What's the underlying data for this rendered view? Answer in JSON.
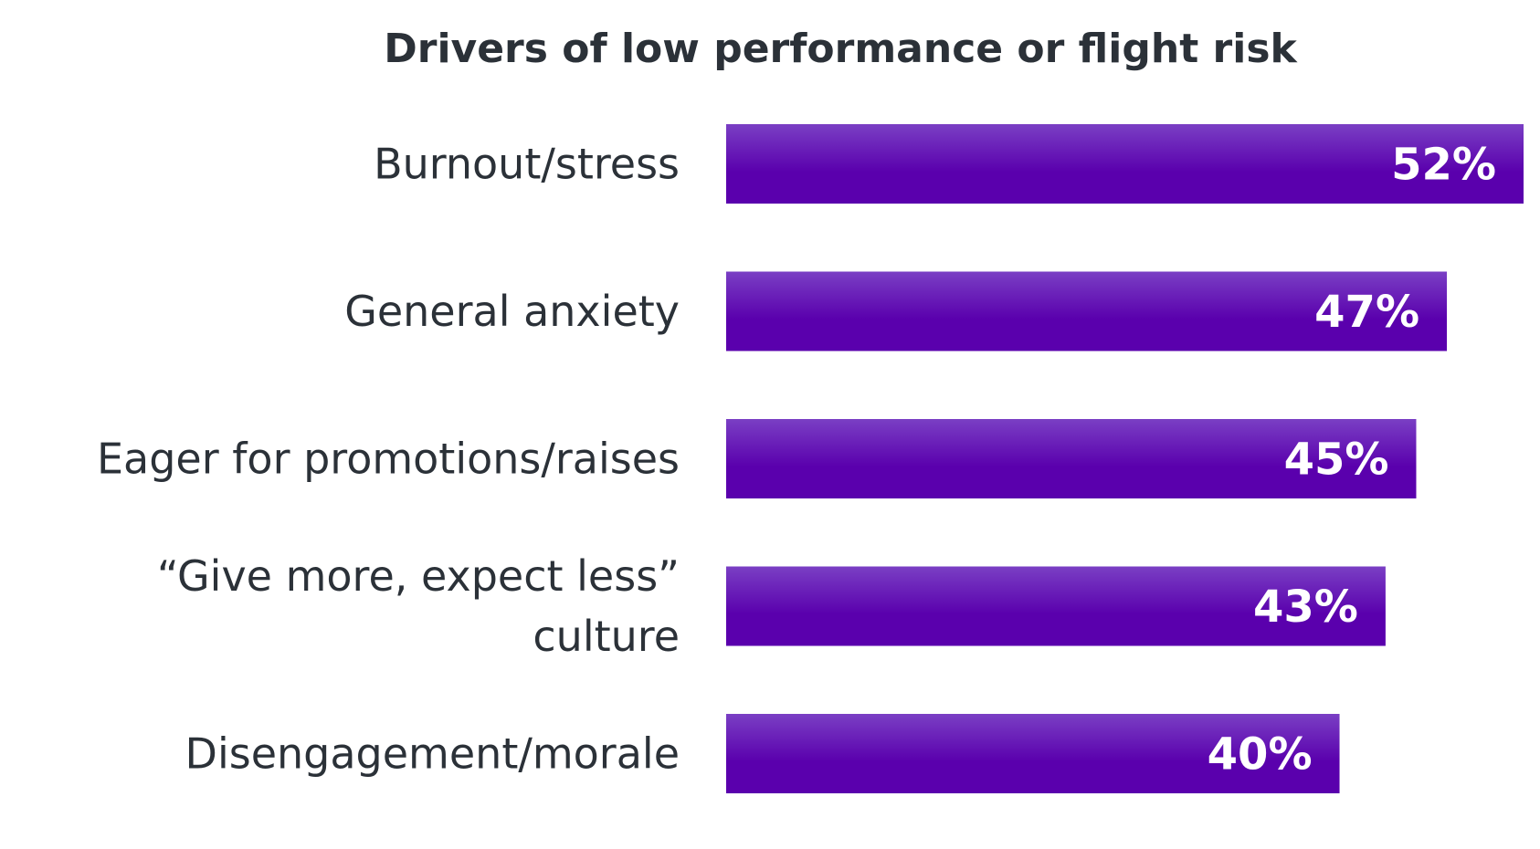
{
  "chart_data": {
    "type": "bar",
    "orientation": "horizontal",
    "title": "Drivers of low performance or flight risk",
    "categories": [
      "Burnout/stress",
      "General anxiety",
      "Eager for promotions/raises",
      "“Give more, expect less” culture",
      "Disengagement/morale"
    ],
    "category_lines": [
      [
        "Burnout/stress"
      ],
      [
        "General anxiety"
      ],
      [
        "Eager for promotions/raises"
      ],
      [
        "“Give more, expect less”",
        "culture"
      ],
      [
        "Disengagement/morale"
      ]
    ],
    "values": [
      52,
      47,
      45,
      43,
      40
    ],
    "value_labels": [
      "52%",
      "47%",
      "45%",
      "43%",
      "40%"
    ],
    "xlabel": "",
    "ylabel": "",
    "grid": false,
    "legend": "none",
    "colors": {
      "bar_top": "#7a3fc4",
      "bar_bottom": "#5a00ad",
      "text": "#2b3138",
      "value_text": "#ffffff"
    }
  }
}
